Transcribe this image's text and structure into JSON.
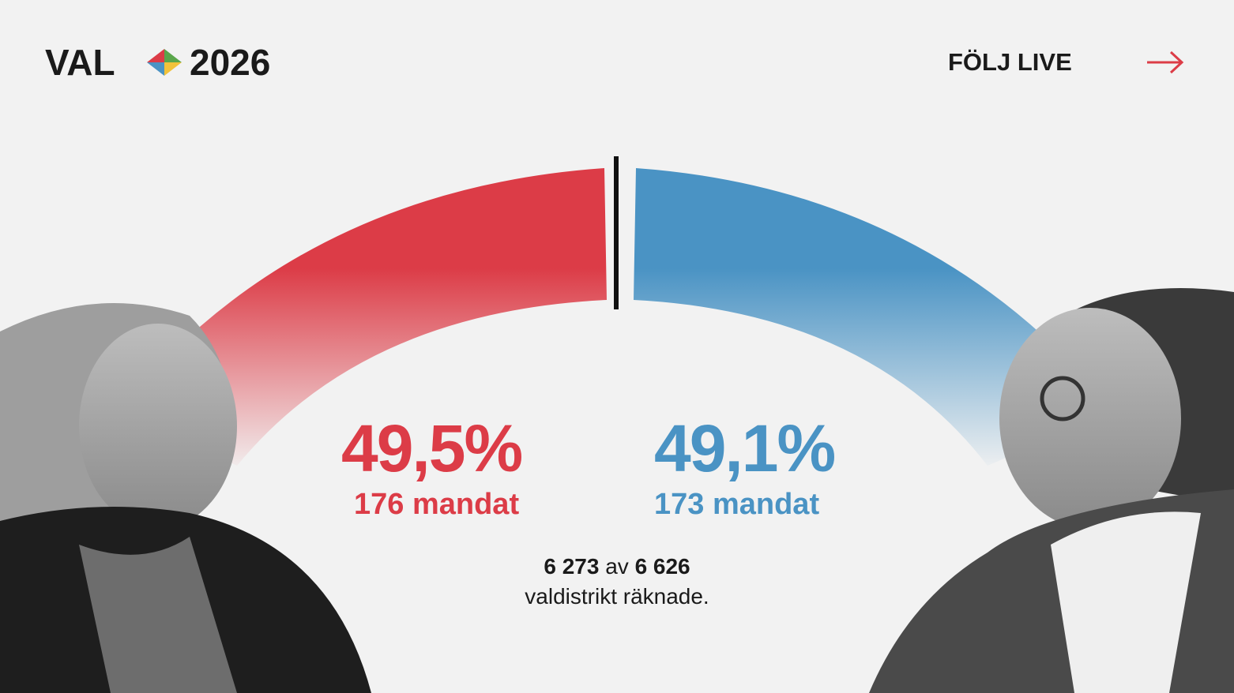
{
  "header": {
    "title_left": "VAL",
    "title_right": "2026",
    "live_link": "FÖLJ LIVE"
  },
  "left": {
    "percent": "49,5%",
    "seats": "176 mandat"
  },
  "right": {
    "percent": "49,1%",
    "seats": "173 mandat"
  },
  "counted": {
    "done": "6 273",
    "of": "av",
    "total": "6 626",
    "caption": "valdistrikt räknade."
  }
}
